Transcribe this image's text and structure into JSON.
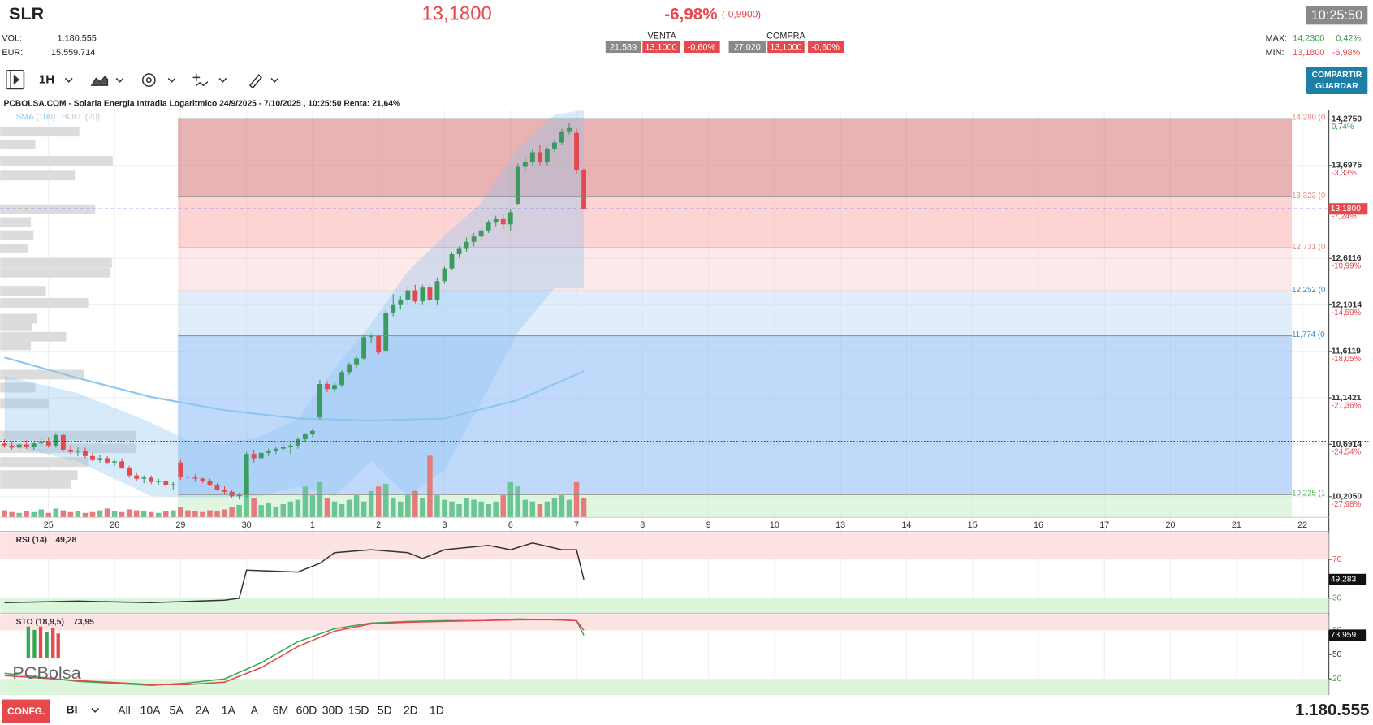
{
  "header": {
    "symbol": "SLR",
    "price": "13,1800",
    "change_pct": "-6,98%",
    "change": "(-0,9900)",
    "time": "10:25:50",
    "vol_label": "VOL:",
    "vol": "1.180.555",
    "eur_label": "EUR:",
    "eur": "15.559.714",
    "venta": {
      "label": "VENTA",
      "qty": "21.589",
      "price": "13,1000",
      "pct": "-0,60%"
    },
    "compra": {
      "label": "COMPRA",
      "qty": "27.020",
      "price": "13,1000",
      "pct": "-0,60%"
    },
    "max_label": "MAX:",
    "max": "14,2300",
    "max_pct": "0,42%",
    "min_label": "MIN:",
    "min": "13,1800",
    "min_pct": "-6,98%"
  },
  "toolbar": {
    "interval": "1H",
    "share": "COMPARTIR",
    "save": "GUARDAR"
  },
  "logo": "PCBolsa",
  "footer": {
    "config": "CONFG.",
    "mode": "BI",
    "ranges": [
      "All",
      "10A",
      "5A",
      "2A",
      "1A",
      "A",
      "6M",
      "60D",
      "30D",
      "15D",
      "5D",
      "2D",
      "1D"
    ],
    "volume": "1.180.555"
  },
  "chart_data": {
    "type": "candlestick",
    "title": "PCBOLSA.COM - Solaria Energia Intradia Logaritmico 24/9/2025 - 7/10/2025 , 10:25:50 Renta: 21,64%",
    "log_scale": true,
    "grid": true,
    "xlim": [
      -0.6,
      180.6
    ],
    "xticks": [
      {
        "value": 6,
        "label": "25"
      },
      {
        "value": 15,
        "label": "26"
      },
      {
        "value": 24,
        "label": "29"
      },
      {
        "value": 33,
        "label": "30"
      },
      {
        "value": 42,
        "label": "1"
      },
      {
        "value": 51,
        "label": "2"
      },
      {
        "value": 60,
        "label": "3"
      },
      {
        "value": 69,
        "label": "6"
      },
      {
        "value": 78,
        "label": "7"
      },
      {
        "value": 87,
        "label": "8"
      },
      {
        "value": 96,
        "label": "9"
      },
      {
        "value": 105,
        "label": "10"
      },
      {
        "value": 114,
        "label": "13"
      },
      {
        "value": 123,
        "label": "14"
      },
      {
        "value": 132,
        "label": "15"
      },
      {
        "value": 141,
        "label": "16"
      },
      {
        "value": 150,
        "label": "17"
      },
      {
        "value": 159,
        "label": "20"
      },
      {
        "value": 168,
        "label": "21"
      },
      {
        "value": 177,
        "label": "22"
      }
    ],
    "ylim": [
      10.02,
      14.39
    ],
    "yticks": [
      {
        "value": 14.275,
        "label": "14,2750",
        "change_label": "0,74%",
        "change_color": "#3a9a4a"
      },
      {
        "value": 13.6975,
        "label": "13,6975",
        "change_label": "-3,33%",
        "change_color": "#e5484d"
      },
      {
        "value": 12.6116,
        "label": "12,6116",
        "change_label": "-10,99%",
        "change_color": "#e5484d"
      },
      {
        "value": 12.1014,
        "label": "12,1014",
        "change_label": "-14,59%",
        "change_color": "#e5484d"
      },
      {
        "value": 11.6119,
        "label": "11,6119",
        "change_label": "-18,05%",
        "change_color": "#e5484d"
      },
      {
        "value": 11.1421,
        "label": "11,1421",
        "change_label": "-21,36%",
        "change_color": "#e5484d"
      },
      {
        "value": 10.6914,
        "label": "10,6914",
        "change_label": "-24,54%",
        "change_color": "#e5484d"
      },
      {
        "value": 10.205,
        "label": "10,2050",
        "change_label": "-27,98%",
        "change_color": "#e5484d"
      }
    ],
    "up_color": "#3b9a5e",
    "down_color": "#e5484d",
    "open": [
      10.7,
      10.68,
      10.66,
      10.69,
      10.67,
      10.7,
      10.72,
      10.68,
      10.78,
      10.64,
      10.62,
      10.63,
      10.58,
      10.55,
      10.56,
      10.52,
      10.53,
      10.47,
      10.4,
      10.37,
      10.38,
      10.34,
      10.35,
      10.31,
      10.52,
      10.39,
      10.38,
      10.37,
      10.35,
      10.31,
      10.27,
      10.25,
      10.21,
      10.22,
      10.6,
      10.56,
      10.61,
      10.63,
      10.65,
      10.67,
      10.68,
      10.74,
      10.79,
      10.95,
      11.28,
      11.23,
      11.27,
      11.4,
      11.48,
      11.54,
      11.76,
      11.77,
      11.62,
      12.02,
      12.1,
      12.16,
      12.26,
      12.14,
      12.29,
      12.15,
      12.36,
      12.5,
      12.66,
      12.72,
      12.8,
      12.86,
      12.93,
      13.02,
      13.06,
      13.0,
      13.24,
      13.68,
      13.74,
      13.86,
      13.74,
      13.9,
      13.98,
      14.12,
      14.1,
      13.64
    ],
    "high": [
      10.74,
      10.72,
      10.7,
      10.73,
      10.71,
      10.75,
      10.76,
      10.8,
      10.8,
      10.68,
      10.66,
      10.66,
      10.61,
      10.59,
      10.58,
      10.55,
      10.56,
      10.49,
      10.43,
      10.4,
      10.4,
      10.37,
      10.37,
      10.34,
      10.55,
      10.42,
      10.41,
      10.39,
      10.37,
      10.33,
      10.3,
      10.27,
      10.24,
      10.62,
      10.64,
      10.62,
      10.65,
      10.67,
      10.69,
      10.7,
      10.76,
      10.8,
      10.84,
      11.32,
      11.31,
      11.3,
      11.42,
      11.5,
      11.56,
      11.78,
      11.8,
      11.78,
      12.05,
      12.22,
      12.2,
      12.3,
      12.32,
      12.32,
      12.33,
      12.4,
      12.52,
      12.68,
      12.75,
      12.85,
      12.9,
      12.96,
      13.05,
      13.1,
      13.12,
      13.18,
      13.72,
      13.8,
      13.9,
      13.95,
      13.92,
      14.02,
      14.15,
      14.23,
      14.15,
      13.66
    ],
    "low": [
      10.66,
      10.64,
      10.63,
      10.65,
      10.64,
      10.67,
      10.66,
      10.66,
      10.62,
      10.6,
      10.58,
      10.56,
      10.53,
      10.52,
      10.5,
      10.49,
      10.46,
      10.38,
      10.35,
      10.33,
      10.32,
      10.31,
      10.29,
      10.27,
      10.36,
      10.35,
      10.34,
      10.33,
      10.3,
      10.26,
      10.22,
      10.19,
      10.18,
      10.2,
      10.52,
      10.54,
      10.58,
      10.6,
      10.62,
      10.6,
      10.65,
      10.71,
      10.76,
      10.93,
      11.2,
      11.2,
      11.25,
      11.37,
      11.44,
      11.52,
      11.7,
      11.58,
      11.6,
      11.98,
      12.05,
      12.1,
      12.12,
      12.1,
      12.12,
      12.1,
      12.33,
      12.48,
      12.62,
      12.68,
      12.75,
      12.82,
      12.9,
      12.98,
      12.95,
      12.92,
      13.22,
      13.62,
      13.7,
      13.7,
      13.7,
      13.86,
      13.95,
      14.08,
      13.6,
      13.18
    ],
    "close": [
      10.68,
      10.66,
      10.69,
      10.67,
      10.7,
      10.72,
      10.68,
      10.78,
      10.64,
      10.62,
      10.63,
      10.58,
      10.55,
      10.56,
      10.52,
      10.53,
      10.47,
      10.4,
      10.37,
      10.38,
      10.34,
      10.35,
      10.31,
      10.32,
      10.39,
      10.38,
      10.37,
      10.35,
      10.31,
      10.27,
      10.25,
      10.21,
      10.22,
      10.6,
      10.56,
      10.61,
      10.63,
      10.65,
      10.67,
      10.68,
      10.74,
      10.79,
      10.82,
      11.28,
      11.23,
      11.27,
      11.4,
      11.48,
      11.54,
      11.76,
      11.77,
      11.6,
      12.02,
      12.1,
      12.16,
      12.26,
      12.14,
      12.29,
      12.15,
      12.36,
      12.5,
      12.66,
      12.72,
      12.8,
      12.86,
      12.93,
      13.02,
      13.06,
      13.0,
      13.14,
      13.68,
      13.74,
      13.86,
      13.74,
      13.9,
      13.98,
      14.12,
      14.16,
      13.64,
      13.18
    ],
    "volume": {
      "ylim": [
        0,
        100
      ],
      "up_color": "#6cc596",
      "down_color": "#e77b7b",
      "values": [
        8,
        6,
        5,
        7,
        6,
        9,
        5,
        10,
        8,
        6,
        7,
        5,
        6,
        8,
        10,
        7,
        6,
        9,
        8,
        7,
        6,
        5,
        7,
        8,
        12,
        8,
        7,
        6,
        8,
        7,
        9,
        12,
        14,
        45,
        22,
        14,
        16,
        12,
        15,
        18,
        20,
        35,
        25,
        40,
        22,
        18,
        15,
        20,
        25,
        18,
        30,
        35,
        38,
        22,
        18,
        25,
        30,
        22,
        70,
        25,
        20,
        18,
        15,
        22,
        20,
        18,
        15,
        18,
        25,
        40,
        35,
        20,
        18,
        15,
        18,
        22,
        25,
        20,
        40,
        22
      ]
    },
    "volume_profile": {
      "color": "#dcdcdc",
      "prices": [
        14.11,
        13.95,
        13.75,
        13.57,
        13.17,
        13.02,
        12.87,
        12.72,
        12.56,
        12.45,
        12.25,
        12.12,
        11.95,
        11.87,
        11.76,
        11.67,
        11.37,
        11.24,
        11.08,
        10.77,
        10.65,
        10.52,
        10.4,
        10.32
      ],
      "values": [
        90,
        40,
        128,
        85,
        108,
        35,
        38,
        32,
        127,
        125,
        52,
        100,
        42,
        36,
        75,
        35,
        95,
        40,
        55,
        155,
        155,
        100,
        88,
        80
      ]
    },
    "indicators": [
      {
        "name": "SMA (100)",
        "color": "#8cc8ee",
        "x": [
          0,
          10,
          20,
          30,
          40,
          50,
          60,
          70,
          79
        ],
        "values": [
          11.55,
          11.34,
          11.15,
          11.02,
          10.94,
          10.92,
          10.94,
          11.12,
          11.41
        ]
      },
      {
        "name": "BOLL (20)",
        "color": "#c8c8c8",
        "fill": "rgba(140,195,240,0.35)",
        "x": [
          0,
          10,
          20,
          25,
          30,
          35,
          40,
          45,
          50,
          55,
          60,
          65,
          70,
          75,
          79
        ],
        "upper": [
          11.36,
          11.19,
          10.9,
          10.73,
          10.69,
          10.77,
          10.94,
          11.44,
          11.9,
          12.47,
          12.87,
          13.25,
          13.9,
          14.33,
          14.39
        ],
        "lower": [
          10.69,
          10.53,
          10.21,
          10.2,
          10.2,
          10.21,
          10.3,
          10.21,
          10.53,
          10.21,
          10.45,
          11.1,
          11.81,
          12.28,
          12.28
        ]
      }
    ],
    "levels": [
      {
        "value": 14.28,
        "label": "14,280 (0",
        "label_color": "#e58a8a",
        "fill": "rgba(214,104,104,0.5)"
      },
      {
        "value": 13.323,
        "label": "13,323 (0",
        "label_color": "#e58a8a",
        "fill": "rgba(248,160,160,0.45)"
      },
      {
        "value": 12.731,
        "label": "12,731 (0",
        "label_color": "#e58a8a",
        "fill": "rgba(250,200,200,0.4)"
      },
      {
        "value": 12.252,
        "label": "12,252 (0",
        "label_color": "#3a86d4",
        "fill": "rgba(200,222,245,0.55)"
      },
      {
        "value": 11.774,
        "label": "11,774 (0",
        "label_color": "#3a86d4",
        "fill": "rgba(140,185,245,0.55)"
      },
      {
        "value": 10.225,
        "label": "10,225 (1",
        "label_color": "#4caf50",
        "fill": "rgba(205,240,205,0.6)"
      }
    ],
    "last_price": {
      "value": 13.18,
      "label": "13,1800",
      "change_label": "-7,24%",
      "color": "#e5484d"
    },
    "reference_line": 10.72,
    "panels": [
      {
        "name": "RSI (14)",
        "value_label": "49,28",
        "last_label": "49,283",
        "ylim": [
          14.5,
          98
        ],
        "yticks": [
          30,
          70
        ],
        "upper_band_color": "#fde3e3",
        "lower_band_color": "#dcf6dc",
        "x": [
          0,
          10,
          20,
          30,
          32,
          33,
          40,
          43,
          45,
          50,
          55,
          57,
          60,
          66,
          69,
          72,
          76,
          78,
          79
        ],
        "lines": [
          {
            "color": "#333333",
            "values": [
              25.5,
              27,
              25.5,
              28,
              30,
              59,
              57,
              66,
              77,
              80,
              77,
              71,
              80,
              84.5,
              80,
              87,
              80,
              80,
              49.28
            ]
          }
        ]
      },
      {
        "name": "STO (18,9,5)",
        "value_label": "73,95",
        "last_label": "73,959",
        "ylim": [
          0,
          100
        ],
        "yticks": [
          20,
          50,
          80
        ],
        "upper_band_color": "#fde3e3",
        "lower_band_color": "#dcf6dc",
        "x": [
          0,
          10,
          20,
          25,
          30,
          35,
          40,
          45,
          50,
          55,
          60,
          65,
          70,
          75,
          78,
          79
        ],
        "lines": [
          {
            "color": "#3aa655",
            "values": [
              27,
              17,
              12,
              15,
              20,
              40,
              66,
              82,
              89,
              91,
              92,
              92,
              94,
              93,
              92,
              73.95
            ]
          },
          {
            "color": "#e5484d",
            "values": [
              24,
              18,
              13,
              13,
              16,
              34,
              60,
              79,
              88,
              90,
              91,
              92,
              93,
              93,
              92,
              80
            ]
          }
        ]
      }
    ]
  }
}
